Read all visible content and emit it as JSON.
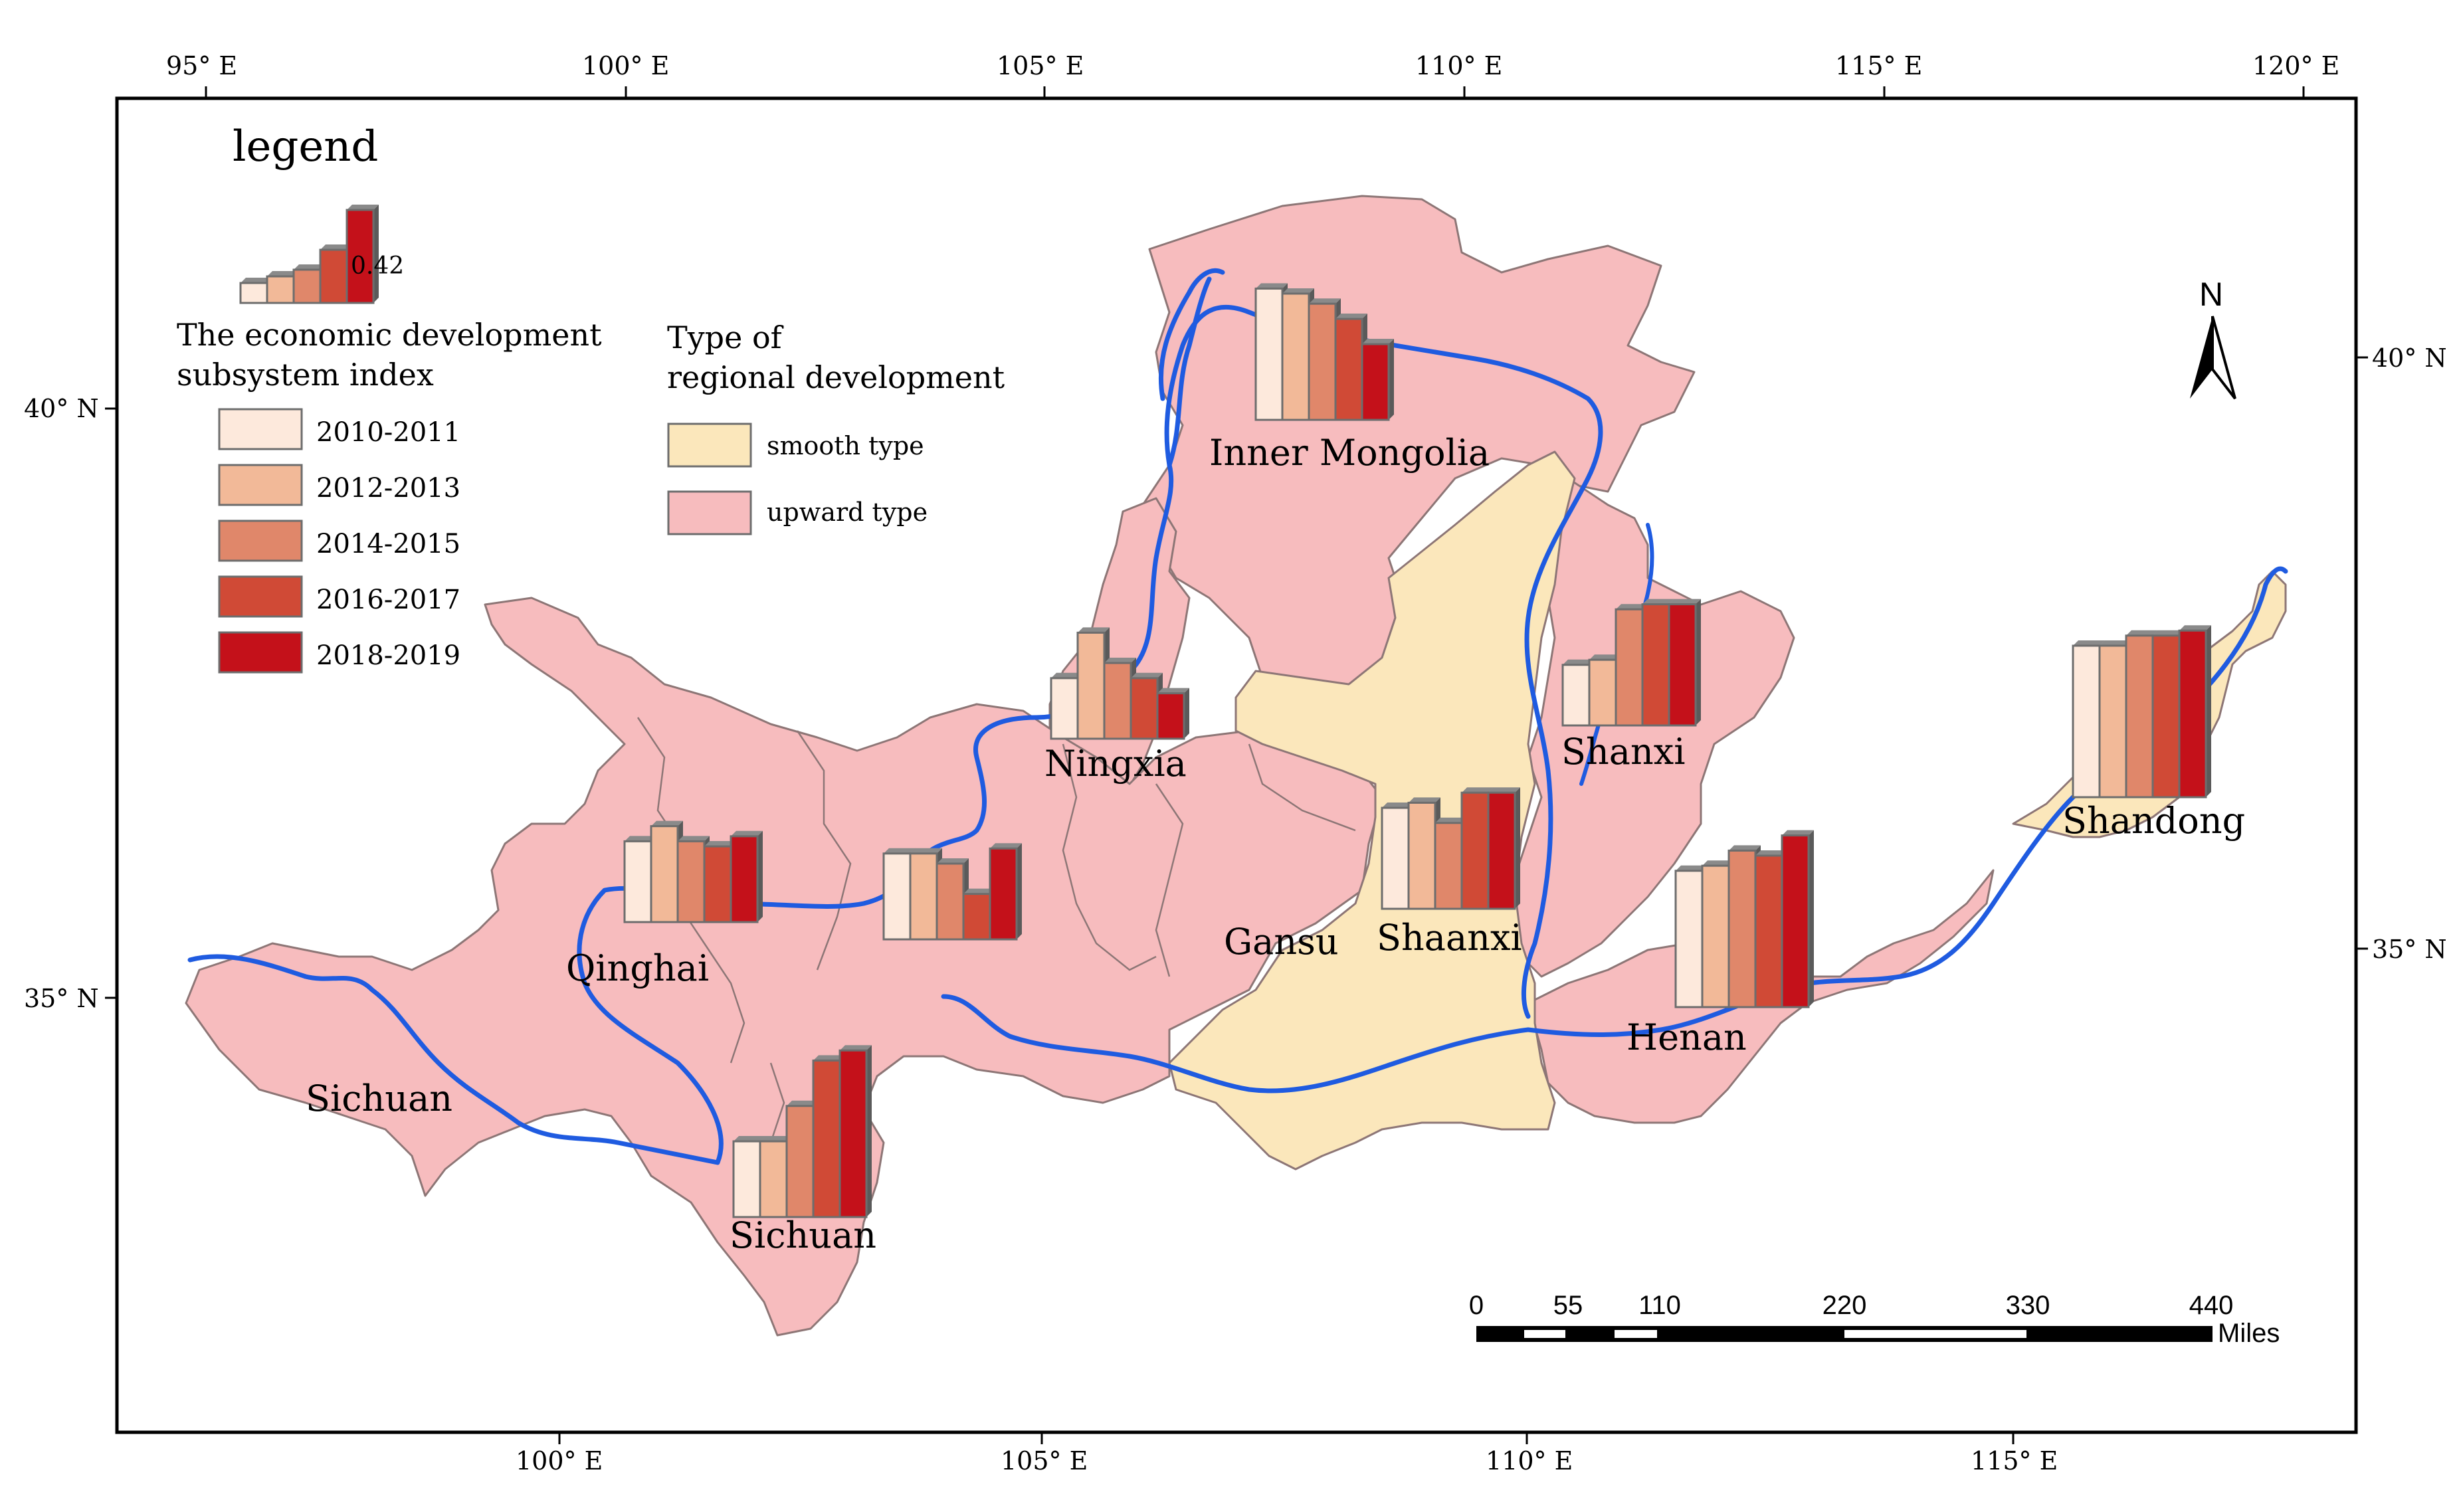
{
  "colors": {
    "upward": "#f7bcbe",
    "smooth": "#fbe7bb",
    "river": "#1f5be0",
    "border": "#8d7676",
    "frame": "#000000",
    "bar_outline": "#6d6d6d",
    "periods": [
      "#fde9dc",
      "#f2b998",
      "#e0876a",
      "#d04a36",
      "#c4111a"
    ]
  },
  "graticule": {
    "top": [
      "95° E",
      "100° E",
      "105° E",
      "110° E",
      "115° E",
      "120° E"
    ],
    "bottom": [
      "100° E",
      "105° E",
      "110° E",
      "115° E"
    ],
    "left": [
      "40° N",
      "35° N"
    ],
    "right": [
      "40° N",
      "35° N"
    ]
  },
  "legend": {
    "title": "legend",
    "sample_value": "0.42",
    "index_title_line1": "The economic development",
    "index_title_line2": "subsystem index",
    "periods": [
      "2010-2011",
      "2012-2013",
      "2014-2015",
      "2016-2017",
      "2018-2019"
    ],
    "type_title_line1": "Type of",
    "type_title_line2": "regional development",
    "types": [
      "smooth type",
      "upward type"
    ]
  },
  "north_arrow": {
    "label": "N"
  },
  "scale_bar": {
    "ticks": [
      "0",
      "55",
      "110",
      "220",
      "330",
      "440"
    ],
    "unit": "Miles"
  },
  "region_labels": {
    "inner_mongolia": "Inner Mongolia",
    "ningxia": "Ningxia",
    "shanxi": "Shanxi",
    "shaanxi": "Shaanxi",
    "gansu": "Gansu",
    "qinghai": "Qinghai",
    "sichuan_west": "Sichuan",
    "sichuan": "Sichuan",
    "henan": "Henan",
    "shandong": "Shandong"
  },
  "chart_data": {
    "type": "bar",
    "categories": [
      "2010-2011",
      "2012-2013",
      "2014-2015",
      "2016-2017",
      "2018-2019"
    ],
    "series": [
      {
        "name": "Inner Mongolia",
        "values": [
          0.26,
          0.25,
          0.23,
          0.2,
          0.15
        ]
      },
      {
        "name": "Ningxia",
        "values": [
          0.12,
          0.21,
          0.15,
          0.12,
          0.09
        ]
      },
      {
        "name": "Shanxi",
        "values": [
          0.12,
          0.13,
          0.23,
          0.24,
          0.24
        ]
      },
      {
        "name": "Shaanxi",
        "values": [
          0.2,
          0.21,
          0.17,
          0.23,
          0.23
        ]
      },
      {
        "name": "Qinghai",
        "values": [
          0.16,
          0.19,
          0.16,
          0.15,
          0.17
        ]
      },
      {
        "name": "Gansu",
        "values": [
          0.17,
          0.17,
          0.15,
          0.09,
          0.18
        ]
      },
      {
        "name": "Sichuan",
        "values": [
          0.15,
          0.15,
          0.22,
          0.31,
          0.33
        ]
      },
      {
        "name": "Henan",
        "values": [
          0.27,
          0.28,
          0.31,
          0.3,
          0.34
        ]
      },
      {
        "name": "Shandong",
        "values": [
          0.3,
          0.3,
          0.32,
          0.32,
          0.33
        ]
      }
    ]
  }
}
